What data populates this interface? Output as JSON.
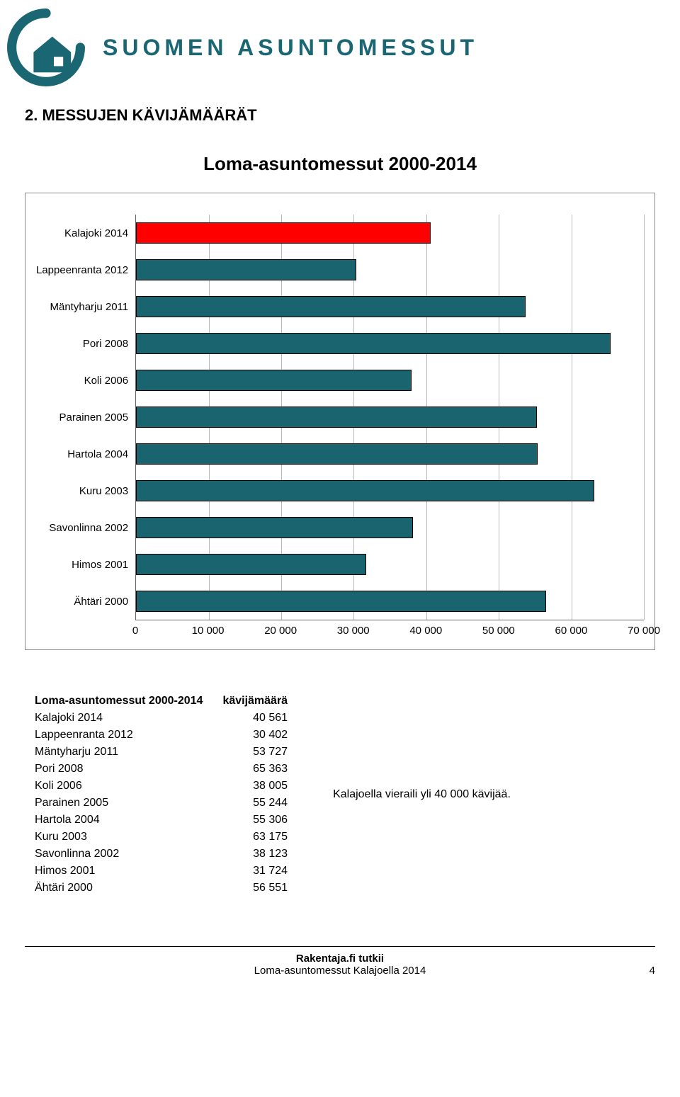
{
  "brand": {
    "text": "SUOMEN ASUNTOMESSUT",
    "accent_color": "#1b6673"
  },
  "section_title": "2.  MESSUJEN KÄVIJÄMÄÄRÄT",
  "chart": {
    "type": "bar-horizontal",
    "title": "Loma-asuntomessut 2000-2014",
    "xlim": [
      0,
      70000
    ],
    "xtick_step": 10000,
    "xtick_labels": [
      "0",
      "10 000",
      "20 000",
      "30 000",
      "40 000",
      "50 000",
      "60 000",
      "70 000"
    ],
    "bar_border": "#000000",
    "grid_color": "#808080",
    "background_color": "#ffffff",
    "categories": [
      {
        "label": "Kalajoki 2014",
        "value": 40561,
        "color": "#ff0000"
      },
      {
        "label": "Lappeenranta 2012",
        "value": 30402,
        "color": "#19646e"
      },
      {
        "label": "Mäntyharju 2011",
        "value": 53727,
        "color": "#19646e"
      },
      {
        "label": "Pori 2008",
        "value": 65363,
        "color": "#19646e"
      },
      {
        "label": "Koli 2006",
        "value": 38005,
        "color": "#19646e"
      },
      {
        "label": "Parainen 2005",
        "value": 55244,
        "color": "#19646e"
      },
      {
        "label": "Hartola 2004",
        "value": 55306,
        "color": "#19646e"
      },
      {
        "label": "Kuru 2003",
        "value": 63175,
        "color": "#19646e"
      },
      {
        "label": "Savonlinna 2002",
        "value": 38123,
        "color": "#19646e"
      },
      {
        "label": "Himos 2001",
        "value": 31724,
        "color": "#19646e"
      },
      {
        "label": "Ähtäri 2000",
        "value": 56551,
        "color": "#19646e"
      }
    ]
  },
  "table": {
    "header": [
      "Loma-asuntomessut 2000-2014",
      "kävijämäärä"
    ],
    "rows": [
      [
        "Kalajoki 2014",
        "40 561"
      ],
      [
        "Lappeenranta 2012",
        "30 402"
      ],
      [
        "Mäntyharju 2011",
        "53 727"
      ],
      [
        "Pori 2008",
        "65 363"
      ],
      [
        "Koli 2006",
        "38 005"
      ],
      [
        "Parainen 2005",
        "55 244"
      ],
      [
        "Hartola 2004",
        "55 306"
      ],
      [
        "Kuru 2003",
        "63 175"
      ],
      [
        "Savonlinna 2002",
        "38 123"
      ],
      [
        "Himos 2001",
        "31 724"
      ],
      [
        "Ähtäri 2000",
        "56 551"
      ]
    ]
  },
  "note": "Kalajoella vieraili yli 40 000 kävijää.",
  "footer": {
    "line1": "Rakentaja.fi tutkii",
    "line2": "Loma-asuntomessut Kalajoella 2014",
    "page": "4"
  }
}
